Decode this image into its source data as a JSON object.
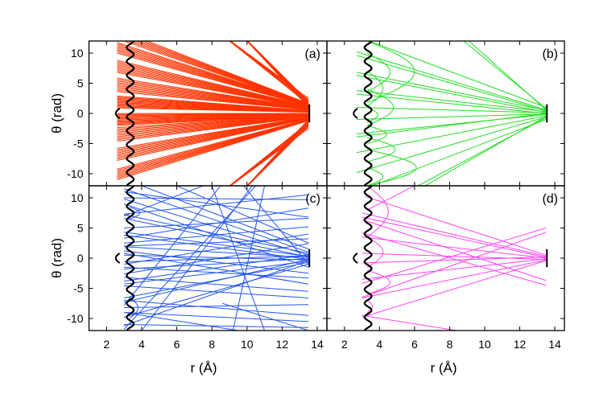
{
  "chart_data": {
    "type": "line",
    "xlabel": "r (Å)",
    "ylabel": "θ (rad)",
    "xlim": [
      1,
      14.55
    ],
    "ylim": [
      -12,
      12
    ],
    "xticks": [
      2,
      4,
      6,
      8,
      10,
      12,
      14
    ],
    "yticks": [
      10,
      5,
      0,
      -5,
      -10
    ],
    "ytick_labels": [
      "10",
      "5",
      "0",
      "-5",
      "-10"
    ],
    "xtick_labels": [
      "2",
      "4",
      "6",
      "8",
      "10",
      "12",
      "14"
    ],
    "wall": {
      "r_center": 3.35,
      "amplitude": 0.2,
      "period": 2.3,
      "color": "#000000"
    },
    "inner_cap": {
      "r": 2.6,
      "theta_half": 0.8
    },
    "target_bar": {
      "r": 13.55,
      "theta_half": 1.5
    },
    "panels": [
      {
        "label": "(a)",
        "color": "#ff3300",
        "bundles": [
          {
            "from": [
              3.0,
              12.0
            ],
            "to": [
              13.5,
              1.4
            ],
            "n": 7,
            "spread": 0.25
          },
          {
            "from": [
              2.6,
              10.0
            ],
            "to": [
              13.5,
              1.2
            ],
            "n": 8,
            "spread": 0.25
          },
          {
            "from": [
              2.6,
              6.8
            ],
            "to": [
              13.5,
              0.9
            ],
            "n": 9,
            "spread": 0.25
          },
          {
            "from": [
              2.6,
              3.6
            ],
            "to": [
              13.5,
              0.6
            ],
            "n": 10,
            "spread": 0.25
          },
          {
            "from": [
              2.6,
              0.9
            ],
            "to": [
              13.5,
              0.2
            ],
            "n": 12,
            "spread": 0.18
          },
          {
            "from": [
              2.6,
              -2.0
            ],
            "to": [
              13.5,
              -0.3
            ],
            "n": 12,
            "spread": 0.18
          },
          {
            "from": [
              2.6,
              -4.6
            ],
            "to": [
              13.5,
              -0.6
            ],
            "n": 10,
            "spread": 0.25
          },
          {
            "from": [
              2.6,
              -7.8
            ],
            "to": [
              13.5,
              -0.9
            ],
            "n": 9,
            "spread": 0.25
          },
          {
            "from": [
              2.6,
              -11.0
            ],
            "to": [
              13.5,
              -1.2
            ],
            "n": 8,
            "spread": 0.25
          },
          {
            "from": [
              13.5,
              1.5
            ],
            "to": [
              9.0,
              12.0
            ],
            "n": 6,
            "spread": 0.2
          },
          {
            "from": [
              13.5,
              1.0
            ],
            "to": [
              10.0,
              12.0
            ],
            "n": 6,
            "spread": 0.2
          },
          {
            "from": [
              13.5,
              -1.5
            ],
            "to": [
              9.0,
              -12.0
            ],
            "n": 6,
            "spread": -0.2
          },
          {
            "from": [
              13.5,
              -1.0
            ],
            "to": [
              10.0,
              -12.0
            ],
            "n": 6,
            "spread": -0.2
          }
        ],
        "lines": [],
        "arcs": []
      },
      {
        "label": "(b)",
        "color": "#22dd22",
        "bundles": [],
        "lines": [
          [
            13.5,
            0.6,
            2.7,
            10.2
          ],
          [
            13.5,
            0.4,
            2.7,
            9.6
          ],
          [
            13.5,
            0.5,
            2.7,
            6.8
          ],
          [
            13.5,
            0.2,
            2.7,
            6.3
          ],
          [
            13.5,
            0.3,
            2.7,
            3.8
          ],
          [
            13.5,
            0.0,
            2.7,
            3.2
          ],
          [
            13.5,
            0.1,
            2.7,
            1.0
          ],
          [
            13.5,
            -0.1,
            2.7,
            -1.0
          ],
          [
            13.5,
            -0.2,
            2.7,
            -3.4
          ],
          [
            13.5,
            0.0,
            2.7,
            -3.9
          ],
          [
            13.5,
            -0.4,
            2.7,
            -6.5
          ],
          [
            13.5,
            -0.6,
            2.7,
            -9.8
          ],
          [
            13.5,
            0.8,
            8.8,
            12
          ],
          [
            13.5,
            0.6,
            9.1,
            12
          ],
          [
            13.5,
            -0.7,
            6.2,
            -12
          ],
          [
            13.5,
            -0.5,
            6.6,
            -12
          ],
          [
            13.5,
            1.0,
            3.4,
            12
          ],
          [
            13.5,
            -1.0,
            3.6,
            -12
          ]
        ],
        "arcs": [
          [
            3.3,
            12,
            1.8,
            6.0
          ],
          [
            3.3,
            10,
            3.6,
            4.6
          ],
          [
            3.3,
            7,
            1.2,
            4.2
          ],
          [
            3.3,
            4,
            -2,
            4.8
          ],
          [
            3.3,
            1,
            -1.5,
            3.9
          ],
          [
            3.3,
            -2,
            -5,
            4.4
          ],
          [
            3.3,
            -4,
            -8,
            4.9
          ],
          [
            3.3,
            -6,
            -12,
            6.1
          ],
          [
            3.3,
            -9,
            -12,
            4.2
          ]
        ]
      },
      {
        "label": "(c)",
        "color": "#2255ee",
        "bundles": [],
        "lines": [
          [
            13.5,
            1.0,
            3.0,
            11.5
          ],
          [
            13.5,
            0.5,
            3.0,
            9.8
          ],
          [
            13.5,
            0.8,
            3.0,
            7.2
          ],
          [
            13.5,
            0.2,
            3.0,
            6.6
          ],
          [
            13.5,
            0.3,
            3.0,
            4.3
          ],
          [
            13.5,
            -0.2,
            3.0,
            3.8
          ],
          [
            13.5,
            0.1,
            3.0,
            1.9
          ],
          [
            13.5,
            -0.3,
            3.0,
            0.5
          ],
          [
            13.5,
            0.4,
            3.0,
            -0.6
          ],
          [
            13.5,
            -0.1,
            3.0,
            -1.8
          ],
          [
            13.5,
            0.6,
            3.0,
            -3.8
          ],
          [
            13.5,
            -0.5,
            3.0,
            -4.3
          ],
          [
            13.5,
            -0.7,
            3.0,
            -6.6
          ],
          [
            13.5,
            -0.2,
            3.0,
            -7.3
          ],
          [
            13.5,
            -1.0,
            3.0,
            -9.8
          ],
          [
            13.5,
            -0.4,
            3.0,
            -11.2
          ],
          [
            13.5,
            6.6,
            3.0,
            5.0
          ],
          [
            13.5,
            5.2,
            3.0,
            2.5
          ],
          [
            13.5,
            4.0,
            3.0,
            -1.0
          ],
          [
            13.5,
            3.2,
            3.0,
            2.0
          ],
          [
            13.5,
            2.4,
            3.0,
            -2.6
          ],
          [
            13.5,
            -2.5,
            3.0,
            1.2
          ],
          [
            13.5,
            -3.3,
            3.0,
            -1.5
          ],
          [
            13.5,
            -4.3,
            3.0,
            0.8
          ],
          [
            13.5,
            -5.5,
            3.0,
            -3.2
          ],
          [
            13.5,
            -6.6,
            3.0,
            -4.6
          ],
          [
            13.5,
            -7.7,
            3.0,
            -8.2
          ],
          [
            13.5,
            -9.5,
            3.0,
            -7.0
          ],
          [
            13.5,
            10.5,
            3.0,
            7.3
          ],
          [
            13.5,
            9.7,
            3.0,
            10.0
          ],
          [
            13.5,
            8.3,
            3.0,
            3.3
          ],
          [
            13.5,
            -11.5,
            3.0,
            -11.0
          ],
          [
            13.5,
            -10.5,
            3.0,
            -9.0
          ],
          [
            13.5,
            -12.0,
            8.6,
            -7.5
          ],
          [
            10.3,
            12,
            4.0,
            -12
          ],
          [
            8.0,
            12,
            11.0,
            -12
          ],
          [
            9.8,
            12,
            13.5,
            -1.0
          ],
          [
            6.0,
            12,
            13.5,
            2.5
          ],
          [
            3.0,
            7.0,
            7.5,
            12
          ],
          [
            3.0,
            -7.8,
            8.5,
            12
          ],
          [
            4.0,
            12,
            13.5,
            1.5
          ],
          [
            3.0,
            -11.8,
            10.5,
            12
          ],
          [
            3.0,
            -9.0,
            9.5,
            -12
          ],
          [
            3.0,
            9.0,
            13.5,
            -1.5
          ],
          [
            9.2,
            -12,
            11.0,
            12
          ],
          [
            3.0,
            11.0,
            13.5,
            6.8
          ]
        ],
        "arcs": [
          [
            3.3,
            8.5,
            6.5,
            3.9
          ],
          [
            3.3,
            -6.5,
            -10,
            3.8
          ]
        ]
      },
      {
        "label": "(d)",
        "color": "#ff44ee",
        "bundles": [],
        "lines": [
          [
            13.5,
            0.3,
            3.0,
            7.5
          ],
          [
            13.5,
            0.1,
            3.0,
            6.8
          ],
          [
            13.5,
            0.0,
            3.0,
            3.5
          ],
          [
            13.5,
            -0.2,
            3.0,
            0.8
          ],
          [
            13.5,
            0.2,
            3.0,
            -0.8
          ],
          [
            13.5,
            -0.1,
            3.0,
            -3.5
          ],
          [
            13.5,
            -0.3,
            3.0,
            -6.6
          ],
          [
            13.5,
            -0.4,
            3.0,
            -9.8
          ],
          [
            13.5,
            5.0,
            3.0,
            -4.2
          ],
          [
            13.5,
            4.3,
            3.0,
            -6.5
          ],
          [
            13.5,
            -4.5,
            3.0,
            4.2
          ],
          [
            13.5,
            -3.7,
            3.0,
            6.4
          ],
          [
            13.5,
            0.5,
            3.2,
            10.2
          ],
          [
            3.0,
            -9.5,
            8.4,
            -12
          ],
          [
            6.0,
            12,
            3.3,
            8.0
          ]
        ],
        "arcs": [
          [
            3.3,
            12,
            3.5,
            4.5
          ],
          [
            3.3,
            3.5,
            -1.5,
            4.2
          ],
          [
            3.3,
            -2,
            -6,
            4.6
          ],
          [
            3.3,
            -7,
            -9,
            3.6
          ]
        ]
      }
    ]
  }
}
